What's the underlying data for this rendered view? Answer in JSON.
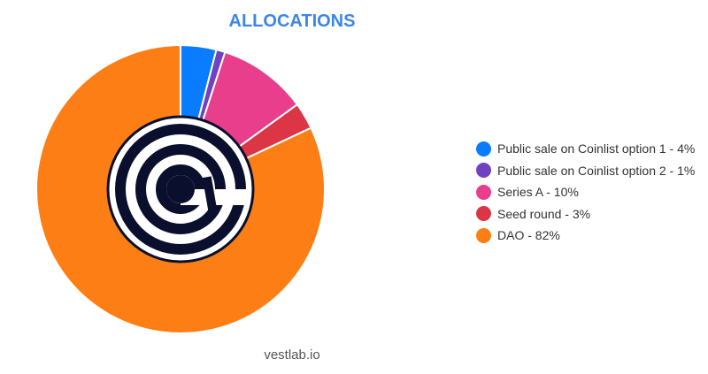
{
  "chart_data": {
    "type": "pie",
    "title": "ALLOCATIONS",
    "slices": [
      {
        "label": "Public sale on Coinlist option 1 - 4%",
        "value": 4,
        "color": "#0a7cff"
      },
      {
        "label": "Public sale on Coinlist option 2 - 1%",
        "value": 1,
        "color": "#6f42c1"
      },
      {
        "label": "Series A - 10%",
        "value": 10,
        "color": "#e83e8c"
      },
      {
        "label": "Seed round - 3%",
        "value": 3,
        "color": "#dc3545"
      },
      {
        "label": "DAO - 82%",
        "value": 82,
        "color": "#fd7e14"
      }
    ],
    "legend_position": "right"
  },
  "footer": "vestlab.io"
}
